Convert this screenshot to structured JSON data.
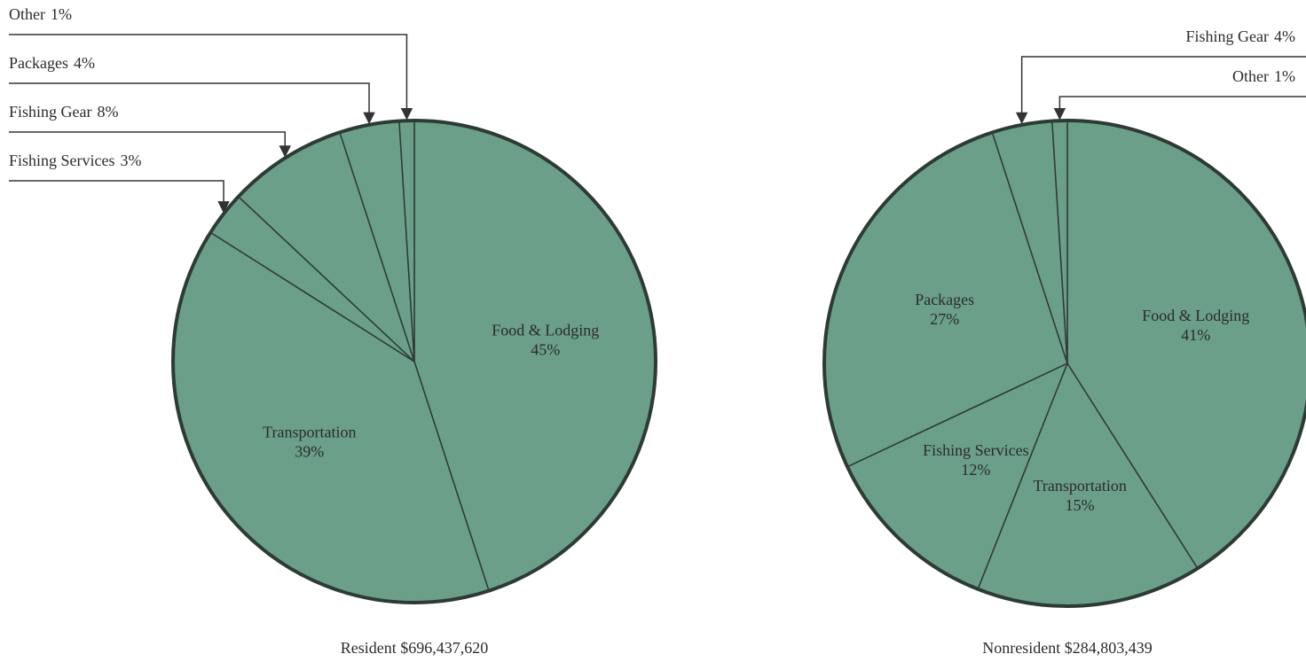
{
  "chart_data": [
    {
      "type": "pie",
      "title": "Resident $696,437,620",
      "categories": [
        "Food & Lodging",
        "Transportation",
        "Fishing Services",
        "Fishing Gear",
        "Packages",
        "Other"
      ],
      "values": [
        45,
        39,
        3,
        8,
        4,
        1
      ],
      "value_labels": [
        "45%",
        "39%",
        "3%",
        "8%",
        "4%",
        "1%"
      ],
      "color": "#6b9f89"
    },
    {
      "type": "pie",
      "title": "Nonresident $284,803,439",
      "categories": [
        "Food & Lodging",
        "Transportation",
        "Fishing Services",
        "Packages",
        "Fishing Gear",
        "Other"
      ],
      "values": [
        41,
        15,
        12,
        27,
        4,
        1
      ],
      "value_labels": [
        "41%",
        "15%",
        "12%",
        "27%",
        "4%",
        "1%"
      ],
      "color": "#6b9f89"
    }
  ]
}
